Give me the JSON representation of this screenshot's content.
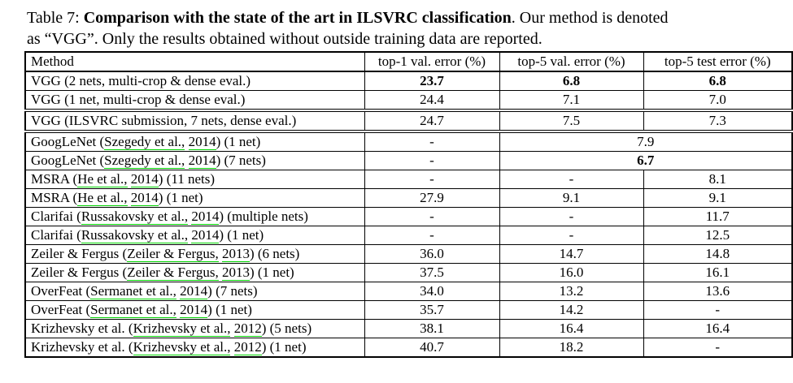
{
  "caption": {
    "line1": {
      "label": "Table 7: ",
      "bold": "Comparison with the state of the art in ILSVRC classification",
      "rest": ". Our method is denoted"
    },
    "line2": "as “VGG”. Only the results obtained without outside training data are reported."
  },
  "colors": {
    "citation_underline": "#00d400",
    "text": "#000000",
    "background": "#ffffff"
  },
  "table": {
    "headers": [
      "Method",
      "top-1 val. error (%)",
      "top-5 val. error (%)",
      "top-5 test error (%)"
    ],
    "rows": [
      {
        "sep": "header",
        "method": [
          {
            "t": "VGG (2 nets, multi-crop & dense eval.)"
          }
        ],
        "cells": [
          {
            "t": "23.7",
            "bold": true
          },
          {
            "t": "6.8",
            "bold": true
          },
          {
            "t": "6.8",
            "bold": true
          }
        ]
      },
      {
        "sep": "single",
        "method": [
          {
            "t": "VGG (1 net, multi-crop & dense eval.)"
          }
        ],
        "cells": [
          {
            "t": "24.4"
          },
          {
            "t": "7.1"
          },
          {
            "t": "7.0"
          }
        ]
      },
      {
        "sep": "double",
        "method": [
          {
            "t": "VGG (ILSVRC submission, 7 nets, dense eval.)"
          }
        ],
        "cells": [
          {
            "t": "24.7"
          },
          {
            "t": "7.5"
          },
          {
            "t": "7.3"
          }
        ]
      },
      {
        "sep": "double",
        "method": [
          {
            "t": "GoogLeNet ("
          },
          {
            "t": "Szegedy et al.,",
            "link": true
          },
          {
            "t": " "
          },
          {
            "t": "2014",
            "link": true
          },
          {
            "t": ") (1 net)"
          }
        ],
        "cells": [
          {
            "t": "-"
          },
          {
            "t": "7.9",
            "colspan": 2
          }
        ]
      },
      {
        "sep": "single",
        "method": [
          {
            "t": "GoogLeNet ("
          },
          {
            "t": "Szegedy et al.,",
            "link": true
          },
          {
            "t": " "
          },
          {
            "t": "2014",
            "link": true
          },
          {
            "t": ") (7 nets)"
          }
        ],
        "cells": [
          {
            "t": "-"
          },
          {
            "t": "6.7",
            "colspan": 2,
            "bold": true
          }
        ]
      },
      {
        "sep": "single",
        "method": [
          {
            "t": "MSRA ("
          },
          {
            "t": "He et al.,",
            "link": true
          },
          {
            "t": " "
          },
          {
            "t": "2014",
            "link": true
          },
          {
            "t": ") (11 nets)"
          }
        ],
        "cells": [
          {
            "t": "-"
          },
          {
            "t": "-"
          },
          {
            "t": "8.1"
          }
        ]
      },
      {
        "sep": "single",
        "method": [
          {
            "t": "MSRA ("
          },
          {
            "t": "He et al.,",
            "link": true
          },
          {
            "t": " "
          },
          {
            "t": "2014",
            "link": true
          },
          {
            "t": ") (1 net)"
          }
        ],
        "cells": [
          {
            "t": "27.9"
          },
          {
            "t": "9.1"
          },
          {
            "t": "9.1"
          }
        ]
      },
      {
        "sep": "single",
        "method": [
          {
            "t": "Clarifai ("
          },
          {
            "t": "Russakovsky et al.,",
            "link": true
          },
          {
            "t": " "
          },
          {
            "t": "2014",
            "link": true
          },
          {
            "t": ") (multiple nets)"
          }
        ],
        "cells": [
          {
            "t": "-"
          },
          {
            "t": "-"
          },
          {
            "t": "11.7"
          }
        ]
      },
      {
        "sep": "single",
        "method": [
          {
            "t": "Clarifai ("
          },
          {
            "t": "Russakovsky et al.,",
            "link": true
          },
          {
            "t": " "
          },
          {
            "t": "2014",
            "link": true
          },
          {
            "t": ") (1 net)"
          }
        ],
        "cells": [
          {
            "t": "-"
          },
          {
            "t": "-"
          },
          {
            "t": "12.5"
          }
        ]
      },
      {
        "sep": "single",
        "method": [
          {
            "t": "Zeiler & Fergus ("
          },
          {
            "t": "Zeiler & Fergus,",
            "link": true
          },
          {
            "t": " "
          },
          {
            "t": "2013",
            "link": true
          },
          {
            "t": ") (6 nets)"
          }
        ],
        "cells": [
          {
            "t": "36.0"
          },
          {
            "t": "14.7"
          },
          {
            "t": "14.8"
          }
        ]
      },
      {
        "sep": "single",
        "method": [
          {
            "t": "Zeiler & Fergus ("
          },
          {
            "t": "Zeiler & Fergus,",
            "link": true
          },
          {
            "t": " "
          },
          {
            "t": "2013",
            "link": true
          },
          {
            "t": ") (1 net)"
          }
        ],
        "cells": [
          {
            "t": "37.5"
          },
          {
            "t": "16.0"
          },
          {
            "t": "16.1"
          }
        ]
      },
      {
        "sep": "single",
        "method": [
          {
            "t": "OverFeat ("
          },
          {
            "t": "Sermanet et al.,",
            "link": true
          },
          {
            "t": " "
          },
          {
            "t": "2014",
            "link": true
          },
          {
            "t": ") (7 nets)"
          }
        ],
        "cells": [
          {
            "t": "34.0"
          },
          {
            "t": "13.2"
          },
          {
            "t": "13.6"
          }
        ]
      },
      {
        "sep": "single",
        "method": [
          {
            "t": "OverFeat ("
          },
          {
            "t": "Sermanet et al.,",
            "link": true
          },
          {
            "t": " "
          },
          {
            "t": "2014",
            "link": true
          },
          {
            "t": ") (1 net)"
          }
        ],
        "cells": [
          {
            "t": "35.7"
          },
          {
            "t": "14.2"
          },
          {
            "t": "-"
          }
        ]
      },
      {
        "sep": "single",
        "method": [
          {
            "t": "Krizhevsky et al. ("
          },
          {
            "t": "Krizhevsky et al.,",
            "link": true
          },
          {
            "t": " "
          },
          {
            "t": "2012",
            "link": true
          },
          {
            "t": ") (5 nets)"
          }
        ],
        "cells": [
          {
            "t": "38.1"
          },
          {
            "t": "16.4"
          },
          {
            "t": "16.4"
          }
        ]
      },
      {
        "sep": "single",
        "method": [
          {
            "t": "Krizhevsky et al. ("
          },
          {
            "t": "Krizhevsky et al.,",
            "link": true
          },
          {
            "t": " "
          },
          {
            "t": "2012",
            "link": true
          },
          {
            "t": ") (1 net)"
          }
        ],
        "cells": [
          {
            "t": "40.7"
          },
          {
            "t": "18.2"
          },
          {
            "t": "-"
          }
        ]
      }
    ]
  }
}
